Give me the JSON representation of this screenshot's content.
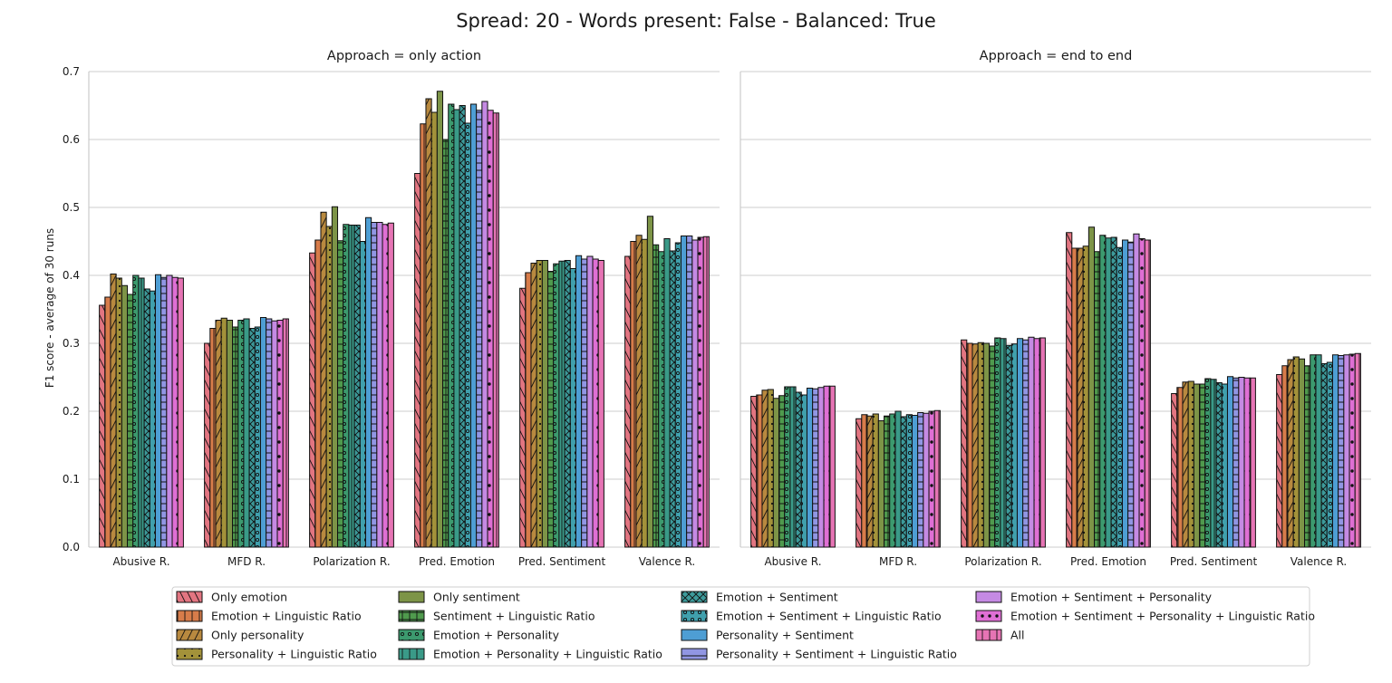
{
  "chart_data": {
    "type": "bar",
    "title": "Spread: 20 - Words present: False - Balanced: True",
    "ylabel": "F1 score - average of 30 runs",
    "xlabel": "",
    "ylim": [
      0,
      0.7
    ],
    "yticks": [
      "0.0",
      "0.1",
      "0.2",
      "0.3",
      "0.4",
      "0.5",
      "0.6",
      "0.7"
    ],
    "grid": true,
    "legend_placement": "bottom-center",
    "categories": [
      "Abusive R.",
      "MFD R.",
      "Polarization R.",
      "Pred. Emotion",
      "Pred. Sentiment",
      "Valence R."
    ],
    "series": [
      {
        "name": "Only emotion",
        "color": "#e27581",
        "pattern": "backslash"
      },
      {
        "name": "Emotion + Linguistic Ratio",
        "color": "#d77c4a",
        "pattern": "vertical"
      },
      {
        "name": "Only personality",
        "color": "#b8893f",
        "pattern": "slash"
      },
      {
        "name": "Personality + Linguistic Ratio",
        "color": "#a3923a",
        "pattern": "dots"
      },
      {
        "name": "Only sentiment",
        "color": "#7d9447",
        "pattern": "none"
      },
      {
        "name": "Sentiment + Linguistic Ratio",
        "color": "#4f9a4d",
        "pattern": "grid"
      },
      {
        "name": "Emotion + Personality",
        "color": "#3c9a6e",
        "pattern": "circles"
      },
      {
        "name": "Emotion + Personality + Linguistic Ratio",
        "color": "#3a9a88",
        "pattern": "vertical"
      },
      {
        "name": "Emotion + Sentiment",
        "color": "#3d9b9b",
        "pattern": "cross"
      },
      {
        "name": "Emotion + Sentiment + Linguistic Ratio",
        "color": "#40a0ad",
        "pattern": "circles"
      },
      {
        "name": "Personality + Sentiment",
        "color": "#4e9ed4",
        "pattern": "none"
      },
      {
        "name": "Personality + Sentiment + Linguistic Ratio",
        "color": "#9196e3",
        "pattern": "horizontal"
      },
      {
        "name": "Emotion + Sentiment + Personality",
        "color": "#c58ae3",
        "pattern": "none"
      },
      {
        "name": "Emotion + Sentiment + Personality + Linguistic Ratio",
        "color": "#df6fd4",
        "pattern": "bigdots"
      },
      {
        "name": "All",
        "color": "#e674b4",
        "pattern": "vertical"
      }
    ],
    "panels": [
      {
        "title": "Approach = only action",
        "values": [
          [
            0.356,
            0.368,
            0.402,
            0.396,
            0.385,
            0.372,
            0.4,
            0.396,
            0.38,
            0.377,
            0.401,
            0.397,
            0.4,
            0.397,
            0.396
          ],
          [
            0.3,
            0.322,
            0.334,
            0.337,
            0.334,
            0.324,
            0.334,
            0.336,
            0.322,
            0.324,
            0.338,
            0.336,
            0.333,
            0.334,
            0.336
          ],
          [
            0.433,
            0.452,
            0.493,
            0.472,
            0.501,
            0.451,
            0.475,
            0.474,
            0.474,
            0.45,
            0.485,
            0.478,
            0.478,
            0.475,
            0.477
          ],
          [
            0.55,
            0.623,
            0.66,
            0.64,
            0.671,
            0.6,
            0.652,
            0.644,
            0.65,
            0.624,
            0.652,
            0.643,
            0.656,
            0.643,
            0.639
          ],
          [
            0.381,
            0.404,
            0.418,
            0.422,
            0.422,
            0.406,
            0.417,
            0.421,
            0.422,
            0.41,
            0.429,
            0.424,
            0.428,
            0.424,
            0.422
          ],
          [
            0.428,
            0.45,
            0.459,
            0.453,
            0.487,
            0.445,
            0.435,
            0.454,
            0.436,
            0.448,
            0.458,
            0.458,
            0.452,
            0.456,
            0.457
          ]
        ]
      },
      {
        "title": "Approach = end to end",
        "values": [
          [
            0.222,
            0.224,
            0.231,
            0.232,
            0.219,
            0.223,
            0.236,
            0.236,
            0.228,
            0.224,
            0.234,
            0.233,
            0.235,
            0.237,
            0.237
          ],
          [
            0.189,
            0.195,
            0.193,
            0.196,
            0.186,
            0.193,
            0.196,
            0.2,
            0.192,
            0.195,
            0.194,
            0.198,
            0.197,
            0.2,
            0.201
          ],
          [
            0.305,
            0.3,
            0.299,
            0.301,
            0.3,
            0.296,
            0.308,
            0.307,
            0.297,
            0.299,
            0.307,
            0.305,
            0.309,
            0.307,
            0.308
          ],
          [
            0.463,
            0.44,
            0.44,
            0.443,
            0.471,
            0.435,
            0.459,
            0.455,
            0.456,
            0.441,
            0.452,
            0.449,
            0.461,
            0.454,
            0.452
          ],
          [
            0.226,
            0.235,
            0.243,
            0.244,
            0.24,
            0.24,
            0.248,
            0.247,
            0.242,
            0.24,
            0.251,
            0.249,
            0.25,
            0.249,
            0.249
          ],
          [
            0.254,
            0.267,
            0.276,
            0.28,
            0.277,
            0.267,
            0.283,
            0.283,
            0.27,
            0.272,
            0.283,
            0.282,
            0.283,
            0.284,
            0.285
          ]
        ]
      }
    ]
  }
}
